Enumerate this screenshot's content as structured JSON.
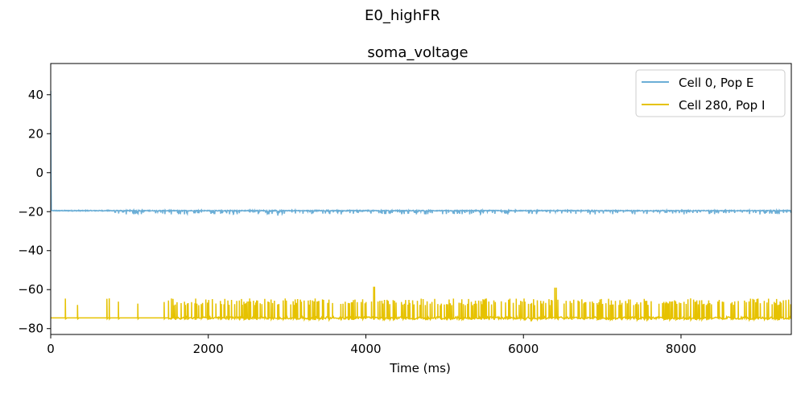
{
  "figure": {
    "suptitle": "E0_highFR"
  },
  "chart_data": {
    "type": "line",
    "title": "soma_voltage",
    "xlabel": "Time (ms)",
    "ylabel": "",
    "xlim": [
      0,
      9400
    ],
    "ylim": [
      -83,
      56
    ],
    "xticks": [
      0,
      2000,
      4000,
      6000,
      8000
    ],
    "yticks": [
      40,
      20,
      0,
      -20,
      -40,
      -60,
      -80
    ],
    "grid": false,
    "legend_position": "top-right",
    "series": [
      {
        "name": "Cell 0, Pop E",
        "color": "#6baed6",
        "baseline": -19.5,
        "x": [
          0,
          4,
          8,
          15,
          30,
          300,
          310,
          800,
          805,
          1500,
          2000,
          2880,
          2885,
          3500,
          4000,
          5000,
          6000,
          7000,
          8000,
          9000,
          9400
        ],
        "y": [
          42,
          0,
          -19,
          -19.5,
          -19.5,
          -19.5,
          -20.5,
          -19.5,
          -21,
          -19.6,
          -19.5,
          -19.5,
          -22,
          -19.6,
          -19.6,
          -19.5,
          -19.6,
          -19.5,
          -19.6,
          -19.5,
          -19.5
        ]
      },
      {
        "name": "Cell 280, Pop I",
        "color": "#e6c200",
        "baseline": -74.5,
        "x": [
          0,
          60,
          300,
          600,
          1000,
          1005,
          1500,
          2000,
          2550,
          2555,
          3000,
          3500,
          4000,
          4100,
          4105,
          4500,
          5000,
          5500,
          6000,
          6400,
          6405,
          7000,
          7500,
          8000,
          8500,
          9000,
          9400
        ],
        "y": [
          -74.5,
          -74.5,
          -74.5,
          -74.5,
          -74.5,
          -58.5,
          -74,
          -73.5,
          -73.5,
          -57,
          -73,
          -73.5,
          -73.5,
          -73.5,
          -58.5,
          -73.5,
          -73.5,
          -73.5,
          -73.5,
          -73.5,
          -59,
          -73.5,
          -73.5,
          -73.5,
          -73.5,
          -73.5,
          -73.5
        ]
      }
    ]
  }
}
